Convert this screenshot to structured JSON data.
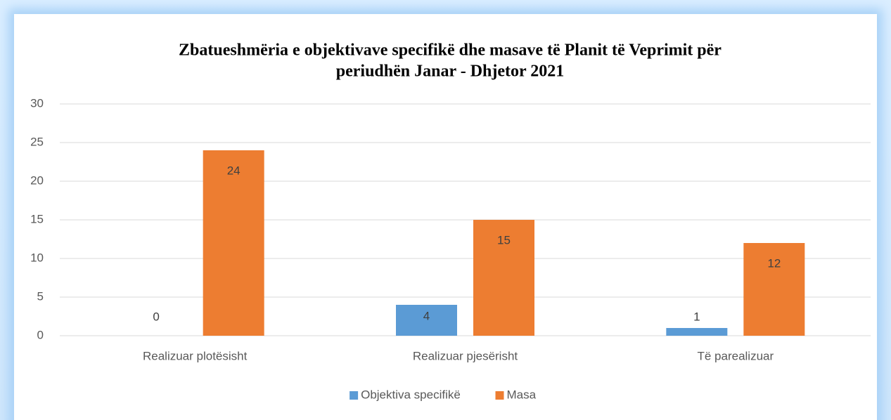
{
  "chart_data": {
    "type": "bar",
    "title_lines": [
      "Zbatueshmëria e objektivave specifikë dhe masave të Planit të Veprimit për",
      "periudhën Janar - Dhjetor 2021"
    ],
    "categories": [
      "Realizuar plotësisht",
      "Realizuar pjesërisht",
      "Të parealizuar"
    ],
    "series": [
      {
        "name": "Objektiva specifikë",
        "color": "#5b9bd5",
        "values": [
          0,
          4,
          1
        ]
      },
      {
        "name": "Masa",
        "color": "#ed7d31",
        "values": [
          24,
          15,
          12
        ]
      }
    ],
    "ylim": [
      0,
      30
    ],
    "yticks": [
      0,
      5,
      10,
      15,
      20,
      25,
      30
    ],
    "grid": true,
    "legend": "bottom"
  }
}
